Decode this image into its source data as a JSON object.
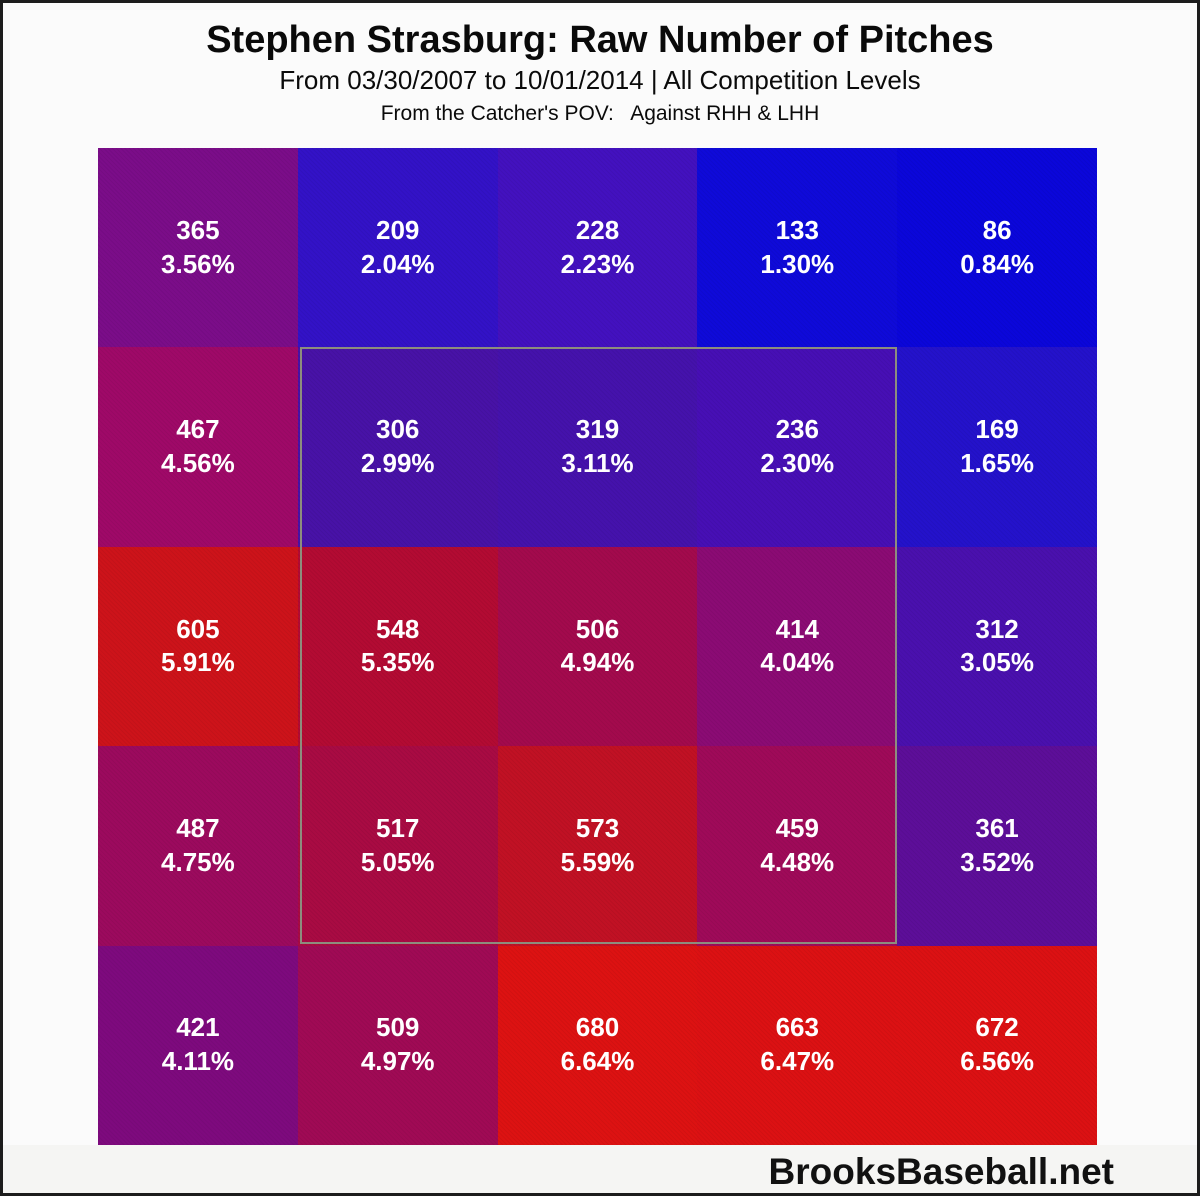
{
  "header": {
    "title": "Stephen Strasburg: Raw Number of Pitches",
    "subtitle": "From 03/30/2007 to 10/01/2014 | All Competition Levels",
    "pov_line": "From the Catcher's POV:   Against RHH & LHH"
  },
  "footer": {
    "brand": "BrooksBaseball.net"
  },
  "chart_data": {
    "type": "heatmap",
    "title": "Stephen Strasburg: Raw Number of Pitches",
    "subtitle": "From 03/30/2007 to 10/01/2014 | All Competition Levels",
    "perspective": "From the Catcher's POV: Against RHH & LHH",
    "metric": "Raw number of pitches per zone with percentage of total",
    "grid_size": "5x5",
    "legend": "color encodes pitch frequency: blue = low %, red = high %",
    "layout": {
      "background": "#fbfbfb",
      "frame_border": "#1c1c1c",
      "strike_zone_outline": "#8d8d7d",
      "cell_text_color": "#ffffff",
      "strike_zone_cells": "inner 3x3 block (rows 2-4, columns 2-4)"
    },
    "color_scale": {
      "low_color": "#0b06da",
      "low_value": "0.84%",
      "high_color": "#dd1212",
      "high_value": "6.64%"
    },
    "counts_matrix": [
      [
        365,
        209,
        228,
        133,
        86
      ],
      [
        467,
        306,
        319,
        236,
        169
      ],
      [
        605,
        548,
        506,
        414,
        312
      ],
      [
        487,
        517,
        573,
        459,
        361
      ],
      [
        421,
        509,
        680,
        663,
        672
      ]
    ],
    "percent_matrix": [
      [
        "3.56%",
        "2.04%",
        "2.23%",
        "1.30%",
        "0.84%"
      ],
      [
        "4.56%",
        "2.99%",
        "3.11%",
        "2.30%",
        "1.65%"
      ],
      [
        "5.91%",
        "5.35%",
        "4.94%",
        "4.04%",
        "3.05%"
      ],
      [
        "4.75%",
        "5.05%",
        "5.59%",
        "4.48%",
        "3.52%"
      ],
      [
        "4.11%",
        "4.97%",
        "6.64%",
        "6.47%",
        "6.56%"
      ]
    ],
    "cells": [
      {
        "row": 1,
        "col": 1,
        "count": 365,
        "pct": "3.56%",
        "color": "#7b0d89"
      },
      {
        "row": 1,
        "col": 2,
        "count": 209,
        "pct": "2.04%",
        "color": "#3312c7"
      },
      {
        "row": 1,
        "col": 3,
        "count": 228,
        "pct": "2.23%",
        "color": "#4311bf"
      },
      {
        "row": 1,
        "col": 4,
        "count": 133,
        "pct": "1.30%",
        "color": "#0f0ad9"
      },
      {
        "row": 1,
        "col": 5,
        "count": 86,
        "pct": "0.84%",
        "color": "#0b06da"
      },
      {
        "row": 2,
        "col": 1,
        "count": 467,
        "pct": "4.56%",
        "color": "#9f0968"
      },
      {
        "row": 2,
        "col": 2,
        "count": 306,
        "pct": "2.99%",
        "color": "#4812a7"
      },
      {
        "row": 2,
        "col": 3,
        "count": 319,
        "pct": "3.11%",
        "color": "#4512ac"
      },
      {
        "row": 2,
        "col": 4,
        "count": 236,
        "pct": "2.30%",
        "color": "#470fb5"
      },
      {
        "row": 2,
        "col": 5,
        "count": 169,
        "pct": "1.65%",
        "color": "#2412cb"
      },
      {
        "row": 3,
        "col": 1,
        "count": 605,
        "pct": "5.91%",
        "color": "#cd131a"
      },
      {
        "row": 3,
        "col": 2,
        "count": 548,
        "pct": "5.35%",
        "color": "#b30b33"
      },
      {
        "row": 3,
        "col": 3,
        "count": 506,
        "pct": "4.94%",
        "color": "#a30a4d"
      },
      {
        "row": 3,
        "col": 4,
        "count": 414,
        "pct": "4.04%",
        "color": "#8b0b74"
      },
      {
        "row": 3,
        "col": 5,
        "count": 312,
        "pct": "3.05%",
        "color": "#4a10ae"
      },
      {
        "row": 4,
        "col": 1,
        "count": 487,
        "pct": "4.75%",
        "color": "#9c0a5e"
      },
      {
        "row": 4,
        "col": 2,
        "count": 517,
        "pct": "5.05%",
        "color": "#a90b43"
      },
      {
        "row": 4,
        "col": 3,
        "count": 573,
        "pct": "5.59%",
        "color": "#c11124"
      },
      {
        "row": 4,
        "col": 4,
        "count": 459,
        "pct": "4.48%",
        "color": "#9f0a59"
      },
      {
        "row": 4,
        "col": 5,
        "count": 361,
        "pct": "3.52%",
        "color": "#5d0e99"
      },
      {
        "row": 5,
        "col": 1,
        "count": 421,
        "pct": "4.11%",
        "color": "#7e0a7e"
      },
      {
        "row": 5,
        "col": 2,
        "count": 509,
        "pct": "4.97%",
        "color": "#a00a55"
      },
      {
        "row": 5,
        "col": 3,
        "count": 680,
        "pct": "6.64%",
        "color": "#dd1212"
      },
      {
        "row": 5,
        "col": 4,
        "count": 663,
        "pct": "6.47%",
        "color": "#dc1113"
      },
      {
        "row": 5,
        "col": 5,
        "count": 672,
        "pct": "6.56%",
        "color": "#dc1113"
      }
    ]
  }
}
